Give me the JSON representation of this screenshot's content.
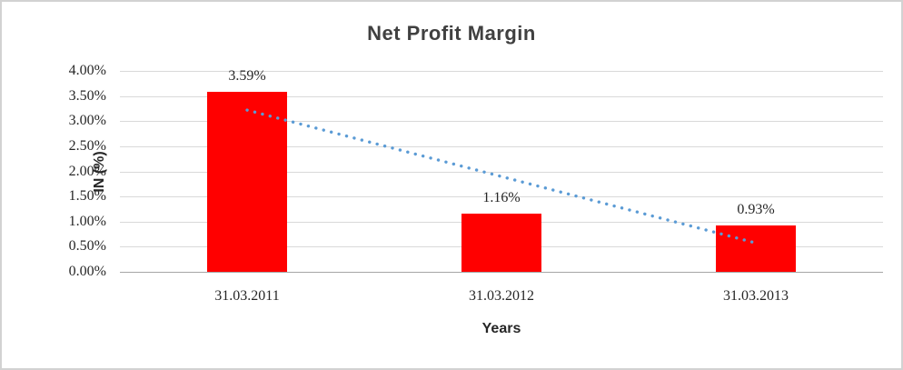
{
  "chart_data": {
    "type": "bar",
    "title": "Net Profit Margin",
    "xlabel": "Years",
    "ylabel": "IN (%)",
    "categories": [
      "31.03.2011",
      "31.03.2012",
      "31.03.2013"
    ],
    "values": [
      3.59,
      1.16,
      0.93
    ],
    "data_labels": [
      "3.59%",
      "1.16%",
      "0.93%"
    ],
    "y_ticks": [
      "4.00%",
      "3.50%",
      "3.00%",
      "2.50%",
      "2.00%",
      "1.50%",
      "1.00%",
      "0.50%",
      "0.00%"
    ],
    "ylim": [
      0,
      4
    ],
    "grid": true,
    "legend": "none",
    "bar_color": "#ff0000",
    "trendline": {
      "type": "linear",
      "style": "dotted",
      "color": "#5b9bd5",
      "start_value": 3.22,
      "end_value": 0.56
    },
    "colors": {
      "title_text": "#404040",
      "tick_text": "#262626",
      "gridline": "#d9d9d9",
      "axis_line": "#a6a6a6",
      "frame_border": "#d2d2d2"
    }
  }
}
